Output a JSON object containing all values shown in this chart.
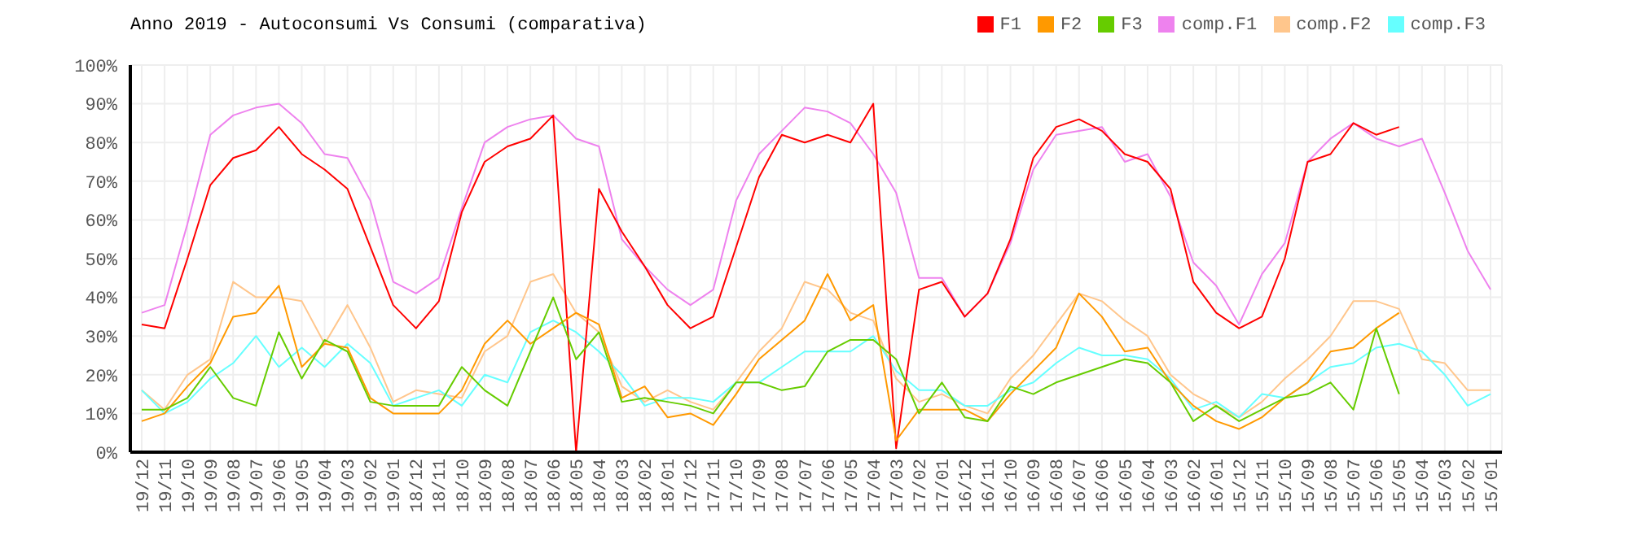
{
  "chart_data": {
    "type": "line",
    "title": "Anno 2019 - Autoconsumi Vs Consumi (comparativa)",
    "categories": [
      "19/12",
      "19/11",
      "19/10",
      "19/09",
      "19/08",
      "19/07",
      "19/06",
      "19/05",
      "19/04",
      "19/03",
      "19/02",
      "19/01",
      "18/12",
      "18/11",
      "18/10",
      "18/09",
      "18/08",
      "18/07",
      "18/06",
      "18/05",
      "18/04",
      "18/03",
      "18/02",
      "18/01",
      "17/12",
      "17/11",
      "17/10",
      "17/09",
      "17/08",
      "17/07",
      "17/06",
      "17/05",
      "17/04",
      "17/03",
      "17/02",
      "17/01",
      "16/12",
      "16/11",
      "16/10",
      "16/09",
      "16/08",
      "16/07",
      "16/06",
      "16/05",
      "16/04",
      "16/03",
      "16/02",
      "16/01",
      "15/12",
      "15/11",
      "15/10",
      "15/09",
      "15/08",
      "15/07",
      "15/06",
      "15/05",
      "15/04",
      "15/03",
      "15/02",
      "15/01"
    ],
    "series": [
      {
        "name": "comp.F1",
        "color": "#ee82ee",
        "values": [
          36,
          38,
          59,
          82,
          87,
          89,
          90,
          85,
          77,
          76,
          65,
          44,
          41,
          45,
          63,
          80,
          84,
          86,
          87,
          81,
          79,
          55,
          48,
          42,
          38,
          42,
          65,
          77,
          83,
          89,
          88,
          85,
          77,
          67,
          45,
          45,
          35,
          41,
          54,
          73,
          82,
          83,
          84,
          75,
          77,
          66,
          49,
          43,
          33,
          46,
          54,
          75,
          81,
          85,
          81,
          79,
          81,
          67,
          52,
          42
        ]
      },
      {
        "name": "comp.F2",
        "color": "#ffc68c",
        "values": [
          16,
          11,
          20,
          24,
          44,
          40,
          40,
          39,
          28,
          38,
          27,
          13,
          16,
          15,
          14,
          26,
          30,
          44,
          46,
          36,
          31,
          17,
          13,
          16,
          13,
          11,
          18,
          26,
          32,
          44,
          42,
          36,
          34,
          19,
          13,
          15,
          12,
          10,
          19,
          25,
          33,
          41,
          39,
          34,
          30,
          20,
          15,
          12,
          9,
          13,
          19,
          24,
          30,
          39,
          39,
          37,
          24,
          23,
          16,
          16
        ]
      },
      {
        "name": "comp.F3",
        "color": "#66ffff",
        "values": [
          16,
          10,
          13,
          19,
          23,
          30,
          22,
          27,
          22,
          28,
          23,
          12,
          14,
          16,
          12,
          20,
          18,
          31,
          34,
          31,
          26,
          20,
          12,
          14,
          14,
          13,
          18,
          18,
          22,
          26,
          26,
          26,
          30,
          21,
          16,
          16,
          12,
          12,
          16,
          18,
          23,
          27,
          25,
          25,
          24,
          19,
          11,
          13,
          9,
          15,
          14,
          18,
          22,
          23,
          27,
          28,
          26,
          20,
          12,
          15
        ]
      },
      {
        "name": "F1",
        "color": "#ff0000",
        "values": [
          33,
          32,
          50,
          69,
          76,
          78,
          84,
          77,
          73,
          68,
          53,
          38,
          32,
          39,
          62,
          75,
          79,
          81,
          87,
          0,
          68,
          57,
          48,
          38,
          32,
          35,
          53,
          71,
          82,
          80,
          82,
          80,
          90,
          1,
          42,
          44,
          35,
          41,
          55,
          76,
          84,
          86,
          83,
          77,
          75,
          68,
          44,
          36,
          32,
          35,
          50,
          75,
          77,
          85,
          82,
          84,
          null,
          null,
          null,
          null
        ]
      },
      {
        "name": "F2",
        "color": "#ff9900",
        "values": [
          8,
          10,
          17,
          23,
          35,
          36,
          43,
          22,
          28,
          27,
          14,
          10,
          10,
          10,
          16,
          28,
          34,
          28,
          32,
          36,
          33,
          14,
          17,
          9,
          10,
          7,
          15,
          24,
          29,
          34,
          46,
          34,
          38,
          3,
          11,
          11,
          11,
          8,
          15,
          21,
          27,
          41,
          35,
          26,
          27,
          18,
          12,
          8,
          6,
          9,
          14,
          18,
          26,
          27,
          32,
          36,
          null,
          null,
          null,
          null
        ]
      },
      {
        "name": "F3",
        "color": "#66cc00",
        "values": [
          11,
          11,
          14,
          22,
          14,
          12,
          31,
          19,
          29,
          26,
          13,
          12,
          12,
          12,
          22,
          16,
          12,
          26,
          40,
          24,
          31,
          13,
          14,
          13,
          12,
          10,
          18,
          18,
          16,
          17,
          26,
          29,
          29,
          24,
          10,
          18,
          9,
          8,
          17,
          15,
          18,
          20,
          22,
          24,
          23,
          18,
          8,
          12,
          8,
          11,
          14,
          15,
          18,
          11,
          32,
          15,
          null,
          null,
          null,
          null
        ]
      }
    ],
    "ylim": [
      0,
      100
    ],
    "yticks": [
      {
        "value": 0,
        "label": "0%"
      },
      {
        "value": 10,
        "label": "10%"
      },
      {
        "value": 20,
        "label": "20%"
      },
      {
        "value": 30,
        "label": "30%"
      },
      {
        "value": 40,
        "label": "40%"
      },
      {
        "value": 50,
        "label": "50%"
      },
      {
        "value": 60,
        "label": "60%"
      },
      {
        "value": 70,
        "label": "70%"
      },
      {
        "value": 80,
        "label": "80%"
      },
      {
        "value": 90,
        "label": "90%"
      },
      {
        "value": 100,
        "label": "100%"
      }
    ],
    "grid": true,
    "legend": "top right",
    "marker": "none",
    "line_style": "solid"
  }
}
